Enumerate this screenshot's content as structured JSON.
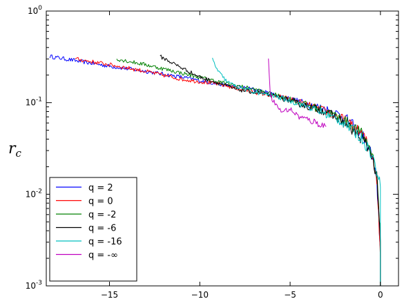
{
  "chart_data": {
    "type": "line",
    "title": "",
    "xlabel": "",
    "ylabel": "r_c",
    "yscale": "log",
    "xlim": [
      -18.5,
      1
    ],
    "ylim": [
      0.001,
      1
    ],
    "x_ticks": [
      -15,
      -10,
      -5,
      0
    ],
    "x_tick_labels": [
      "−15",
      "−10",
      "−5",
      "0"
    ],
    "y_ticks": [
      0.001,
      0.01,
      0.1,
      1
    ],
    "y_tick_labels": [
      {
        "base": "10",
        "exp": "-3"
      },
      {
        "base": "10",
        "exp": "-2"
      },
      {
        "base": "10",
        "exp": "-1"
      },
      {
        "base": "10",
        "exp": "0"
      }
    ],
    "grid": false,
    "legend_position": "lower-left",
    "series": [
      {
        "name": "q = 2",
        "color": "#0000ff",
        "x": [
          -18.3,
          -17,
          -15,
          -13,
          -11,
          -9,
          -7,
          -5,
          -3,
          -2,
          -1,
          -0.5,
          -0.2,
          -0.1,
          0
        ],
        "y": [
          0.32,
          0.29,
          0.25,
          0.22,
          0.19,
          0.16,
          0.14,
          0.11,
          0.085,
          0.07,
          0.045,
          0.028,
          0.013,
          0.006,
          0.0025
        ]
      },
      {
        "name": "q = 0",
        "color": "#ff0000",
        "x": [
          -16.9,
          -15,
          -13,
          -11,
          -9,
          -7,
          -5,
          -3,
          -2,
          -1,
          -0.5,
          -0.2,
          -0.1,
          0
        ],
        "y": [
          0.3,
          0.26,
          0.22,
          0.18,
          0.16,
          0.13,
          0.11,
          0.08,
          0.065,
          0.045,
          0.03,
          0.015,
          0.006,
          0.002
        ]
      },
      {
        "name": "q = -2",
        "color": "#008000",
        "x": [
          -14.6,
          -13,
          -11,
          -9,
          -7,
          -5,
          -3,
          -2,
          -1,
          -0.5,
          -0.2,
          -0.1,
          0
        ],
        "y": [
          0.3,
          0.26,
          0.21,
          0.17,
          0.14,
          0.11,
          0.08,
          0.065,
          0.045,
          0.03,
          0.016,
          0.008,
          0.003
        ]
      },
      {
        "name": "q = -6",
        "color": "#000000",
        "x": [
          -12.2,
          -11,
          -10,
          -9,
          -8,
          -7,
          -6,
          -5,
          -4,
          -3,
          -2,
          -1,
          -0.5,
          -0.2,
          0
        ],
        "y": [
          0.32,
          0.24,
          0.19,
          0.165,
          0.14,
          0.13,
          0.12,
          0.105,
          0.09,
          0.08,
          0.06,
          0.04,
          0.028,
          0.015,
          0.003
        ]
      },
      {
        "name": "q = -16",
        "color": "#00bfbf",
        "x": [
          -9.3,
          -9,
          -8.5,
          -8,
          -7,
          -6,
          -5,
          -4,
          -3,
          -2,
          -1,
          -0.5,
          -0.2,
          0
        ],
        "y": [
          0.3,
          0.22,
          0.17,
          0.15,
          0.13,
          0.12,
          0.105,
          0.09,
          0.075,
          0.06,
          0.04,
          0.028,
          0.018,
          0.012
        ]
      },
      {
        "name": "q = -∞",
        "color": "#bf00bf",
        "x": [
          -6.2,
          -6.1,
          -6.0,
          -5.5,
          -5,
          -4.5,
          -4,
          -3.5,
          -3
        ],
        "y": [
          0.3,
          0.13,
          0.11,
          0.08,
          0.085,
          0.07,
          0.065,
          0.06,
          0.055
        ]
      }
    ]
  }
}
